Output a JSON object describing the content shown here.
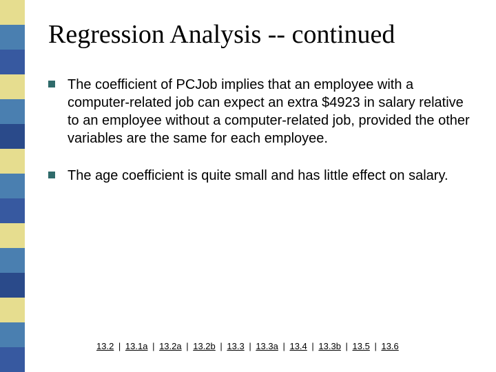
{
  "sidebar": {
    "colors": [
      "#e6dd8f",
      "#4a7fb0",
      "#3759a0",
      "#e6dd8f",
      "#4a7fb0",
      "#2a4a8a",
      "#e6dd8f",
      "#4a7fb0",
      "#3759a0",
      "#e6dd8f",
      "#4a7fb0",
      "#2a4a8a",
      "#e6dd8f",
      "#4a7fb0",
      "#3759a0"
    ]
  },
  "title": "Regression Analysis -- continued",
  "bullets": [
    {
      "text": "The coefficient of PCJob implies that an employee with a computer-related job can expect an extra $4923 in salary relative to an employee without a computer-related job, provided the other variables are the same for each employee."
    },
    {
      "text": "The age coefficient is quite small and has little effect on salary."
    }
  ],
  "nav": {
    "items": [
      "13.2",
      "13.1a",
      "13.2a",
      "13.2b",
      "13.3",
      "13.3a",
      "13.4",
      "13.3b",
      "13.5",
      "13.6"
    ],
    "separator": "|"
  }
}
